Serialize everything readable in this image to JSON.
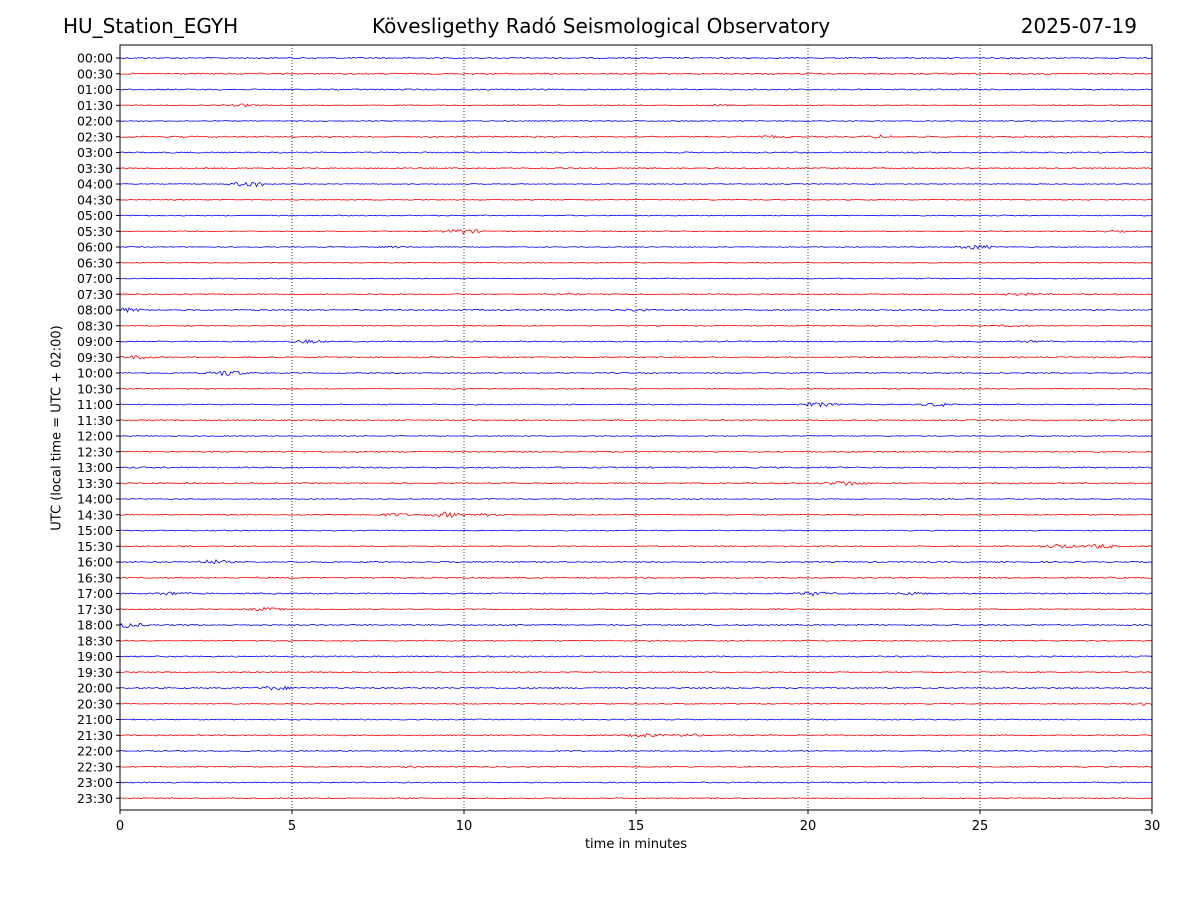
{
  "header": {
    "station": "HU_Station_EGYH",
    "title": "Kövesligethy Radó Seismological Observatory",
    "date": "2025-07-19"
  },
  "chart_data": {
    "type": "line",
    "xlabel": "time in minutes",
    "ylabel": "UTC (local time = UTC + 02:00)",
    "xlim": [
      0,
      30
    ],
    "xticks": [
      "0",
      "5",
      "10",
      "15",
      "20",
      "25",
      "30"
    ],
    "grid": "vertical dotted at 5-minute intervals",
    "colors": [
      "#0000ff",
      "#ff0000"
    ],
    "rows": [
      "00:00",
      "00:30",
      "01:00",
      "01:30",
      "02:00",
      "02:30",
      "03:00",
      "03:30",
      "04:00",
      "04:30",
      "05:00",
      "05:30",
      "06:00",
      "06:30",
      "07:00",
      "07:30",
      "08:00",
      "08:30",
      "09:00",
      "09:30",
      "10:00",
      "10:30",
      "11:00",
      "11:30",
      "12:00",
      "12:30",
      "13:00",
      "13:30",
      "14:00",
      "14:30",
      "15:00",
      "15:30",
      "16:00",
      "16:30",
      "17:00",
      "17:30",
      "18:00",
      "18:30",
      "19:00",
      "19:30",
      "20:00",
      "20:30",
      "21:00",
      "21:30",
      "22:00",
      "22:30",
      "23:00",
      "23:30"
    ]
  }
}
